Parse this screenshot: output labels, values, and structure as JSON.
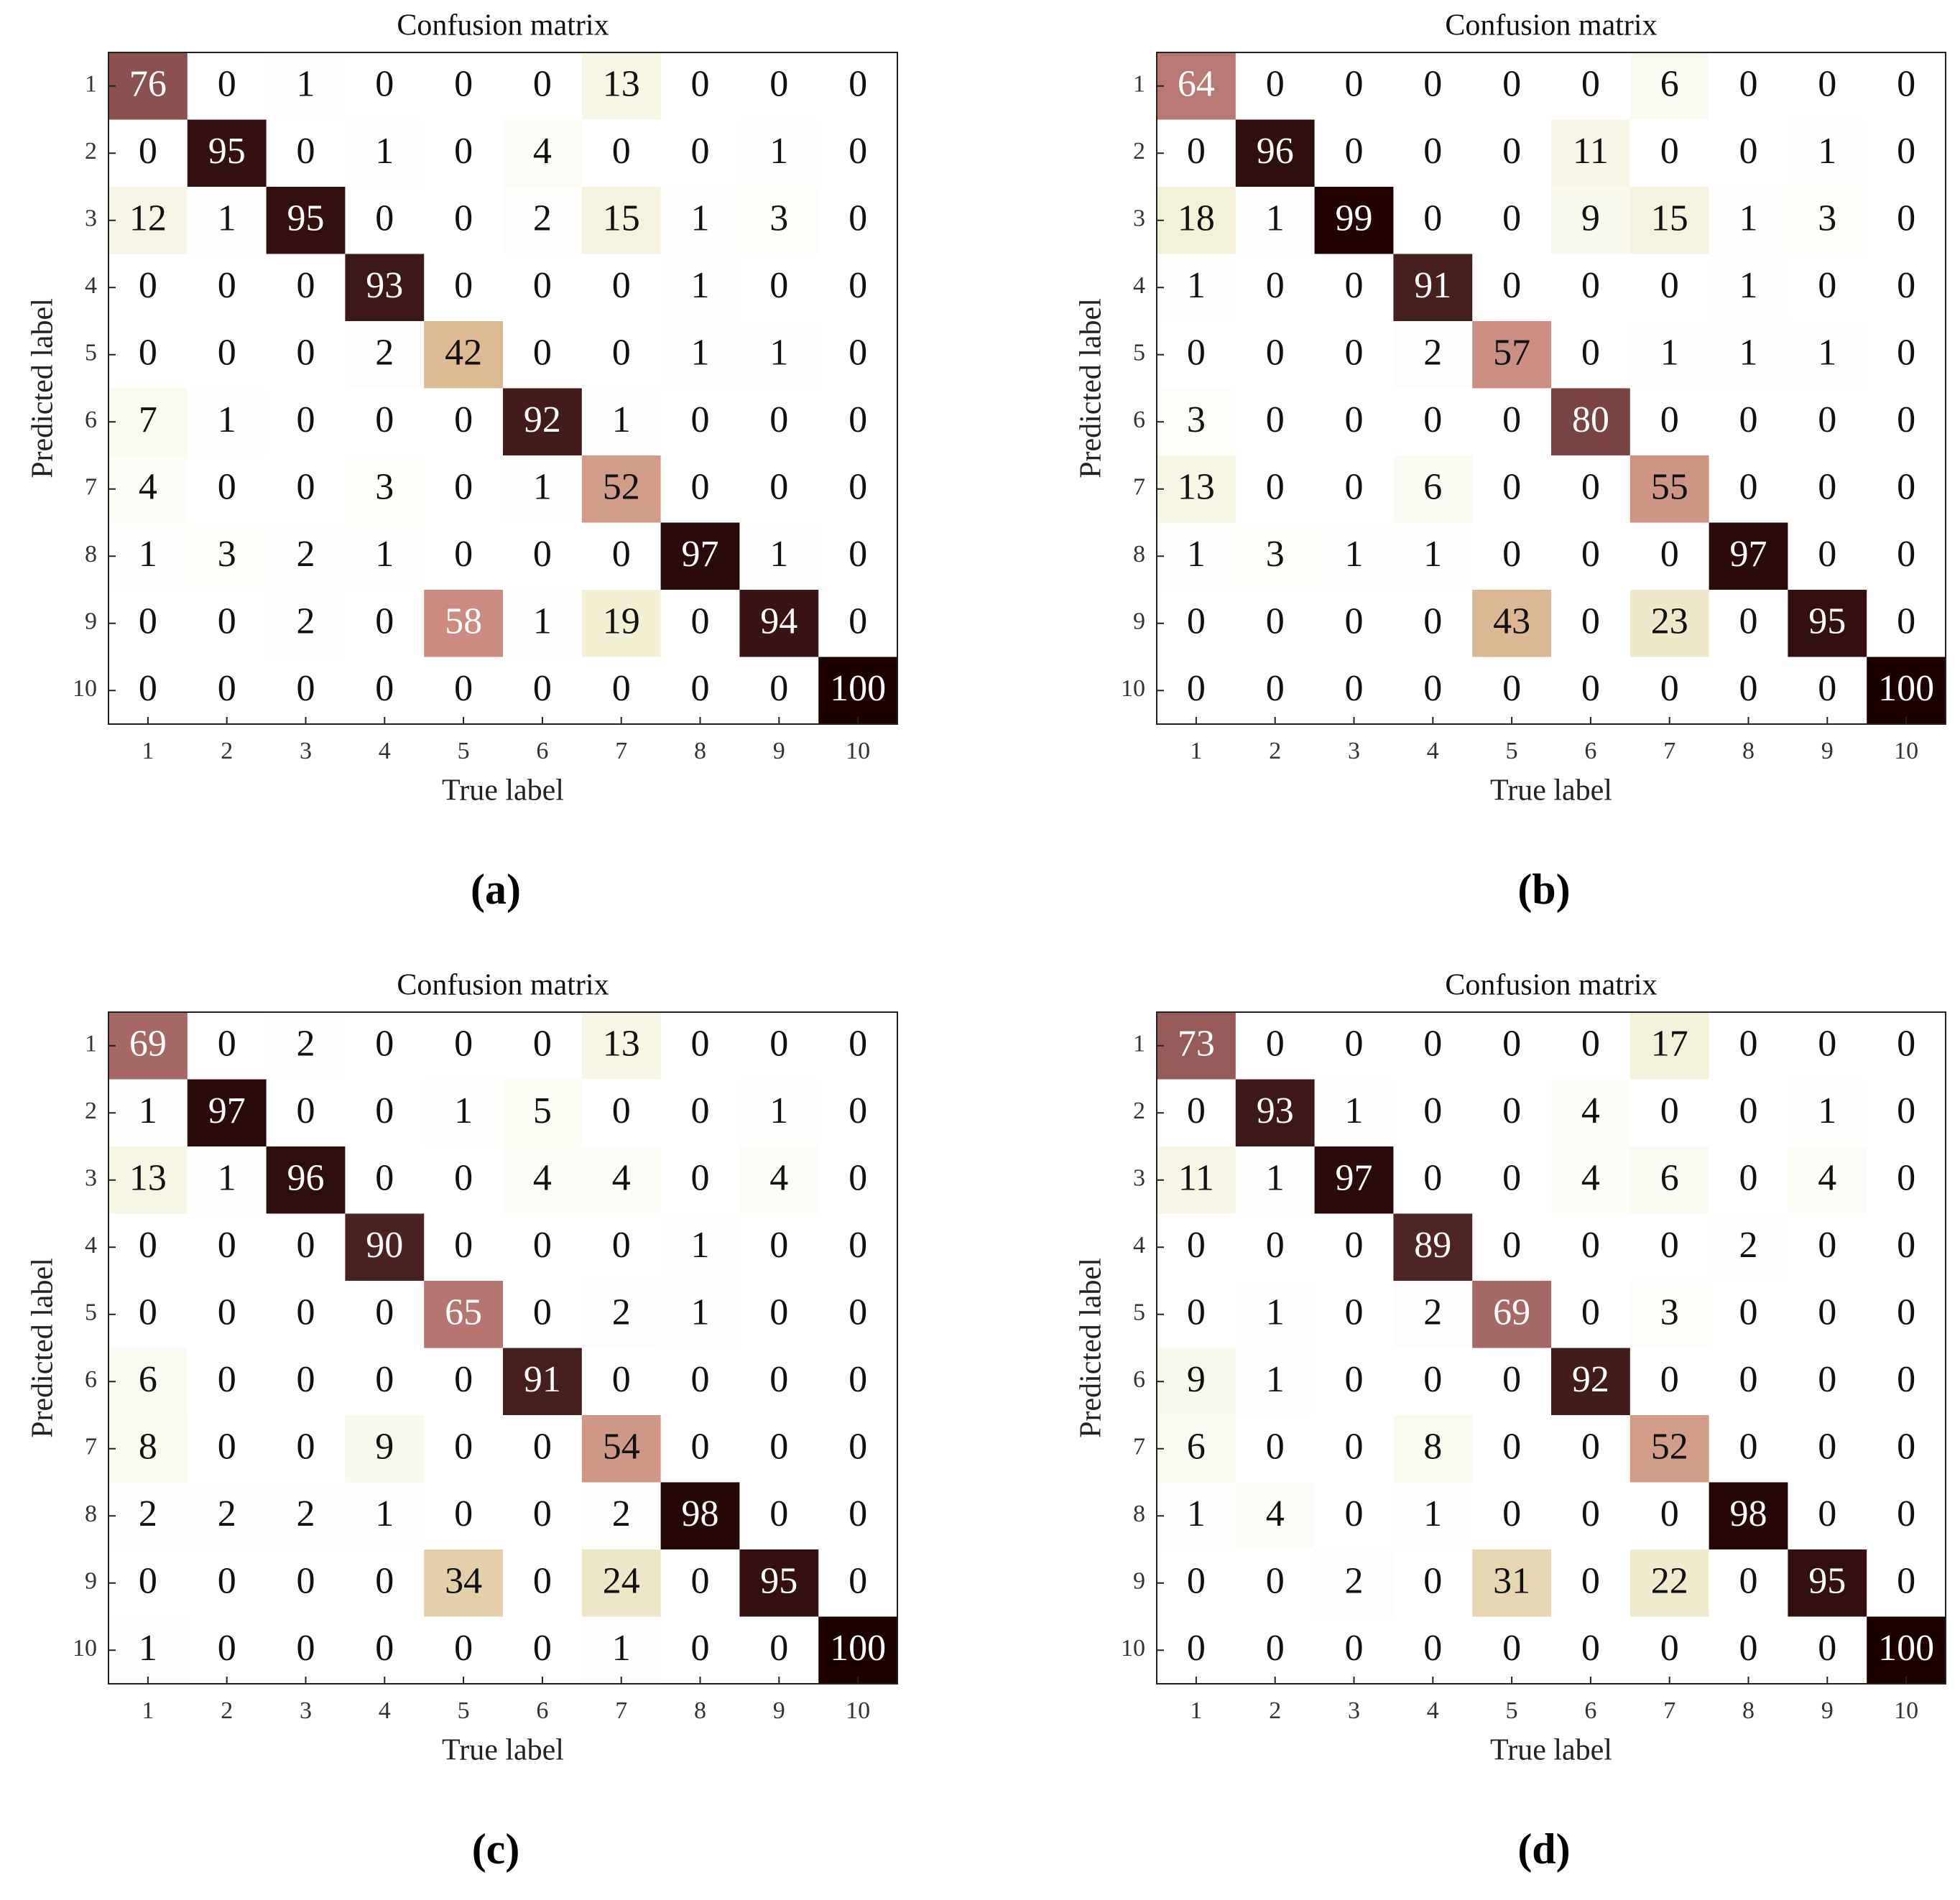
{
  "chart_data": [
    {
      "type": "heatmap",
      "title": "Confusion matrix",
      "label": "(a)",
      "x_label": "True label",
      "y_label": "Predicted label",
      "xticks": [
        1,
        2,
        3,
        4,
        5,
        6,
        7,
        8,
        9,
        10
      ],
      "yticks": [
        1,
        2,
        3,
        4,
        5,
        6,
        7,
        8,
        9,
        10
      ],
      "colormap": [
        "#ffffff",
        "#f2efd4",
        "#dcc196",
        "#c98580",
        "#7a4444",
        "#1c0000"
      ],
      "values": [
        [
          76,
          0,
          1,
          0,
          0,
          0,
          13,
          0,
          0,
          0
        ],
        [
          0,
          95,
          0,
          1,
          0,
          4,
          0,
          0,
          1,
          0
        ],
        [
          12,
          1,
          95,
          0,
          0,
          2,
          15,
          1,
          3,
          0
        ],
        [
          0,
          0,
          0,
          93,
          0,
          0,
          0,
          1,
          0,
          0
        ],
        [
          0,
          0,
          0,
          2,
          42,
          0,
          0,
          1,
          1,
          0
        ],
        [
          7,
          1,
          0,
          0,
          0,
          92,
          1,
          0,
          0,
          0
        ],
        [
          4,
          0,
          0,
          3,
          0,
          1,
          52,
          0,
          0,
          0
        ],
        [
          1,
          3,
          2,
          1,
          0,
          0,
          0,
          97,
          1,
          0
        ],
        [
          0,
          0,
          2,
          0,
          58,
          1,
          19,
          0,
          94,
          0
        ],
        [
          0,
          0,
          0,
          0,
          0,
          0,
          0,
          0,
          0,
          100
        ]
      ]
    },
    {
      "type": "heatmap",
      "title": "Confusion matrix",
      "label": "(b)",
      "x_label": "True label",
      "y_label": "Predicted label",
      "xticks": [
        1,
        2,
        3,
        4,
        5,
        6,
        7,
        8,
        9,
        10
      ],
      "yticks": [
        1,
        2,
        3,
        4,
        5,
        6,
        7,
        8,
        9,
        10
      ],
      "colormap": [
        "#ffffff",
        "#f2efd4",
        "#dcc196",
        "#c98580",
        "#7a4444",
        "#1c0000"
      ],
      "values": [
        [
          64,
          0,
          0,
          0,
          0,
          0,
          6,
          0,
          0,
          0
        ],
        [
          0,
          96,
          0,
          0,
          0,
          11,
          0,
          0,
          1,
          0
        ],
        [
          18,
          1,
          99,
          0,
          0,
          9,
          15,
          1,
          3,
          0
        ],
        [
          1,
          0,
          0,
          91,
          0,
          0,
          0,
          1,
          0,
          0
        ],
        [
          0,
          0,
          0,
          2,
          57,
          0,
          1,
          1,
          1,
          0
        ],
        [
          3,
          0,
          0,
          0,
          0,
          80,
          0,
          0,
          0,
          0
        ],
        [
          13,
          0,
          0,
          6,
          0,
          0,
          55,
          0,
          0,
          0
        ],
        [
          1,
          3,
          1,
          1,
          0,
          0,
          0,
          97,
          0,
          0
        ],
        [
          0,
          0,
          0,
          0,
          43,
          0,
          23,
          0,
          95,
          0
        ],
        [
          0,
          0,
          0,
          0,
          0,
          0,
          0,
          0,
          0,
          100
        ]
      ]
    },
    {
      "type": "heatmap",
      "title": "Confusion matrix",
      "label": "(c)",
      "x_label": "True label",
      "y_label": "Predicted label",
      "xticks": [
        1,
        2,
        3,
        4,
        5,
        6,
        7,
        8,
        9,
        10
      ],
      "yticks": [
        1,
        2,
        3,
        4,
        5,
        6,
        7,
        8,
        9,
        10
      ],
      "colormap": [
        "#ffffff",
        "#f2efd4",
        "#dcc196",
        "#c98580",
        "#7a4444",
        "#1c0000"
      ],
      "values": [
        [
          69,
          0,
          2,
          0,
          0,
          0,
          13,
          0,
          0,
          0
        ],
        [
          1,
          97,
          0,
          0,
          1,
          5,
          0,
          0,
          1,
          0
        ],
        [
          13,
          1,
          96,
          0,
          0,
          4,
          4,
          0,
          4,
          0
        ],
        [
          0,
          0,
          0,
          90,
          0,
          0,
          0,
          1,
          0,
          0
        ],
        [
          0,
          0,
          0,
          0,
          65,
          0,
          2,
          1,
          0,
          0
        ],
        [
          6,
          0,
          0,
          0,
          0,
          91,
          0,
          0,
          0,
          0
        ],
        [
          8,
          0,
          0,
          9,
          0,
          0,
          54,
          0,
          0,
          0
        ],
        [
          2,
          2,
          2,
          1,
          0,
          0,
          2,
          98,
          0,
          0
        ],
        [
          0,
          0,
          0,
          0,
          34,
          0,
          24,
          0,
          95,
          0
        ],
        [
          1,
          0,
          0,
          0,
          0,
          0,
          1,
          0,
          0,
          100
        ]
      ]
    },
    {
      "type": "heatmap",
      "title": "Confusion matrix",
      "label": "(d)",
      "x_label": "True label",
      "y_label": "Predicted label",
      "xticks": [
        1,
        2,
        3,
        4,
        5,
        6,
        7,
        8,
        9,
        10
      ],
      "yticks": [
        1,
        2,
        3,
        4,
        5,
        6,
        7,
        8,
        9,
        10
      ],
      "colormap": [
        "#ffffff",
        "#f2efd4",
        "#dcc196",
        "#c98580",
        "#7a4444",
        "#1c0000"
      ],
      "values": [
        [
          73,
          0,
          0,
          0,
          0,
          0,
          17,
          0,
          0,
          0
        ],
        [
          0,
          93,
          1,
          0,
          0,
          4,
          0,
          0,
          1,
          0
        ],
        [
          11,
          1,
          97,
          0,
          0,
          4,
          6,
          0,
          4,
          0
        ],
        [
          0,
          0,
          0,
          89,
          0,
          0,
          0,
          2,
          0,
          0
        ],
        [
          0,
          1,
          0,
          2,
          69,
          0,
          3,
          0,
          0,
          0
        ],
        [
          9,
          1,
          0,
          0,
          0,
          92,
          0,
          0,
          0,
          0
        ],
        [
          6,
          0,
          0,
          8,
          0,
          0,
          52,
          0,
          0,
          0
        ],
        [
          1,
          4,
          0,
          1,
          0,
          0,
          0,
          98,
          0,
          0
        ],
        [
          0,
          0,
          2,
          0,
          31,
          0,
          22,
          0,
          95,
          0
        ],
        [
          0,
          0,
          0,
          0,
          0,
          0,
          0,
          0,
          0,
          100
        ]
      ]
    }
  ]
}
